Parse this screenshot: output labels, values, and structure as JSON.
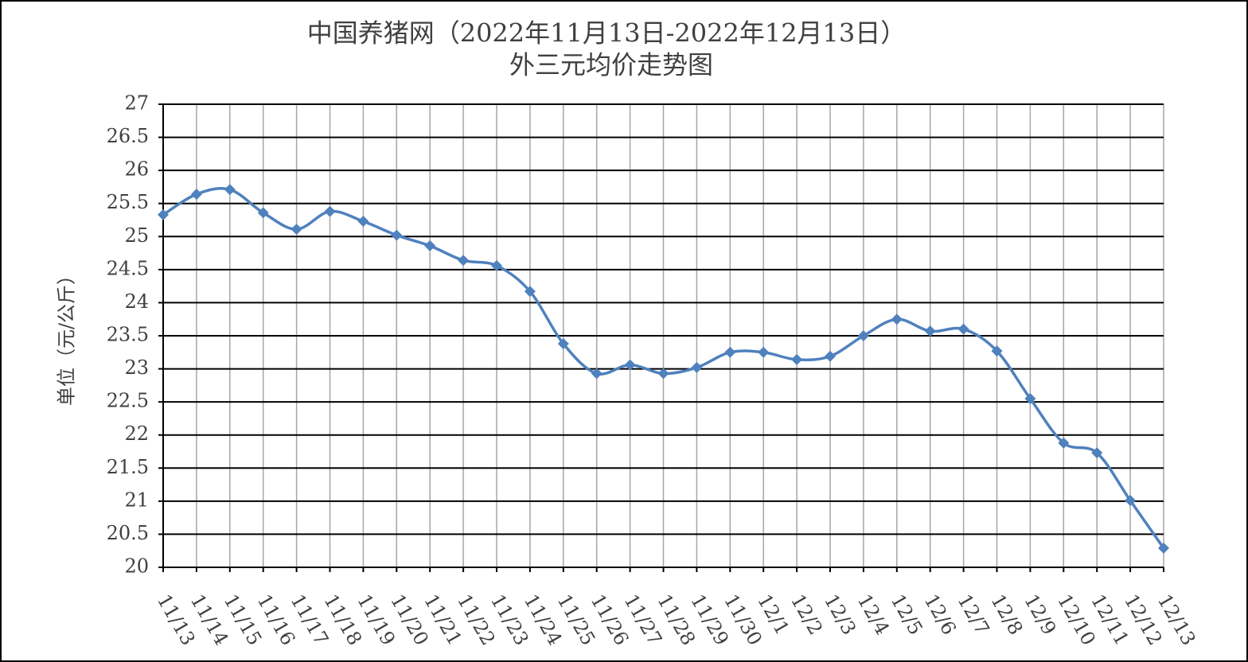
{
  "chart_data": {
    "type": "line",
    "title": "中国养猪网（2022年11月13日-2022年12月13日）",
    "subtitle": "外三元均价走势图",
    "y_label": "单位（元/公斤）",
    "categories": [
      "11/13",
      "11/14",
      "11/15",
      "11/16",
      "11/17",
      "11/18",
      "11/19",
      "11/20",
      "11/21",
      "11/22",
      "11/23",
      "11/24",
      "11/25",
      "11/26",
      "11/27",
      "11/28",
      "11/29",
      "11/30",
      "12/1",
      "12/2",
      "12/3",
      "12/4",
      "12/5",
      "12/6",
      "12/7",
      "12/8",
      "12/9",
      "12/10",
      "12/11",
      "12/12",
      "12/13"
    ],
    "values": [
      25.33,
      25.64,
      25.71,
      25.36,
      25.11,
      25.38,
      25.23,
      25.02,
      24.86,
      24.64,
      24.56,
      24.17,
      23.38,
      22.93,
      23.06,
      22.93,
      23.02,
      23.25,
      23.25,
      23.14,
      23.19,
      23.5,
      23.75,
      23.57,
      23.6,
      23.27,
      22.55,
      21.88,
      21.73,
      21.01,
      20.29
    ],
    "color": "#4f81bd",
    "ylim": [
      20,
      27
    ],
    "yticks": [
      20,
      20.5,
      21,
      21.5,
      22,
      22.5,
      23,
      23.5,
      24,
      24.5,
      25,
      25.5,
      26,
      26.5,
      27
    ],
    "grid": true
  }
}
